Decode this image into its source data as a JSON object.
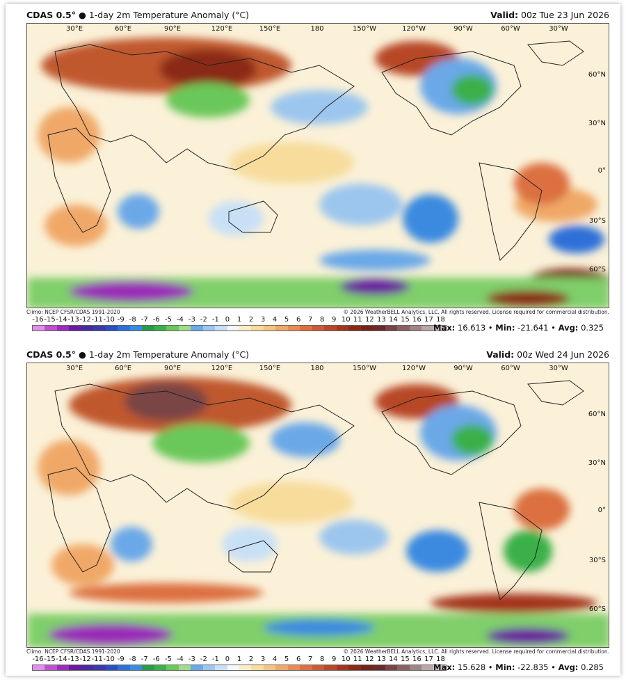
{
  "panels": [
    {
      "title_bold": "CDAS 0.5°",
      "title_rest": " ● 1-day 2m Temperature Anomaly (°C)",
      "valid_label": "Valid:",
      "valid_value": " 00z Tue 23 Jun 2026",
      "climo": "Climo: NCEP CFSR/CDAS 1991-2020",
      "copyright": "© 2026 WeatherBELL Analytics, LLC. All rights reserved. License required for commercial distribution.",
      "max_label": "Max:",
      "max_value": " 16.613",
      "min_label": "Min:",
      "min_value": " -21.641",
      "avg_label": "Avg:",
      "avg_value": " 0.325",
      "sep": " • "
    },
    {
      "title_bold": "CDAS 0.5°",
      "title_rest": " ● 1-day 2m Temperature Anomaly (°C)",
      "valid_label": "Valid:",
      "valid_value": " 00z Wed 24 Jun 2026",
      "climo": "Climo: NCEP CFSR/CDAS 1991-2020",
      "copyright": "© 2026 WeatherBELL Analytics, LLC. All rights reserved. License required for commercial distribution.",
      "max_label": "Max:",
      "max_value": " 15.628",
      "min_label": "Min:",
      "min_value": " -22.835",
      "avg_label": "Avg:",
      "avg_value": " 0.285",
      "sep": " • "
    }
  ],
  "longitudes": [
    "30°E",
    "60°E",
    "90°E",
    "120°E",
    "150°E",
    "180",
    "150°W",
    "120°W",
    "90°W",
    "60°W",
    "30°W"
  ],
  "latitudes": [
    "60°N",
    "30°N",
    "0°",
    "30°S",
    "60°S"
  ],
  "colorbar": {
    "ticks": [
      "-16",
      "-15",
      "-14",
      "-13",
      "-12",
      "-11",
      "-10",
      "-9",
      "-8",
      "-7",
      "-6",
      "-5",
      "-4",
      "-3",
      "-2",
      "-1",
      "0",
      "1",
      "2",
      "3",
      "4",
      "5",
      "6",
      "7",
      "8",
      "9",
      "10",
      "11",
      "12",
      "13",
      "14",
      "15",
      "16",
      "17",
      "18"
    ],
    "colors": [
      "#e090e8",
      "#c050d0",
      "#9a2cb8",
      "#6a1aa0",
      "#4a2a9a",
      "#3a3aa8",
      "#2a50c0",
      "#2e70d8",
      "#3a8ae0",
      "#2a9a4a",
      "#3ab04a",
      "#6ac85a",
      "#a0dc8a",
      "#6aa8e8",
      "#9cc6ee",
      "#c8e0f6",
      "#f4f6fa",
      "#fbeec6",
      "#f7dc9c",
      "#f4c482",
      "#f0a868",
      "#e88c52",
      "#dc7040",
      "#cc5a34",
      "#b84628",
      "#a4361e",
      "#8a2a18",
      "#742418",
      "#6a2a28",
      "#7a4444",
      "#8a6262",
      "#a08484",
      "#baa8a8",
      "#d4c8c8"
    ]
  }
}
